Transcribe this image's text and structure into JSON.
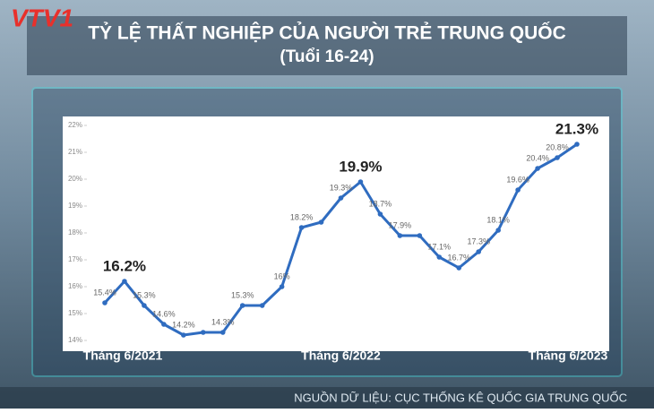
{
  "logo": "VTV1",
  "chart_data": {
    "type": "line",
    "title": "TỶ LỆ THẤT NGHIỆP CỦA NGƯỜI TRẺ TRUNG QUỐC",
    "subtitle": "(Tuổi 16-24)",
    "source": "NGUỒN DỮ LIỆU: CỤC THỐNG KÊ QUỐC GIA TRUNG QUỐC",
    "categories": [
      "Tháng 6/2021",
      null,
      null,
      null,
      null,
      null,
      null,
      null,
      null,
      null,
      null,
      null,
      "Tháng 6/2022",
      null,
      null,
      null,
      null,
      null,
      null,
      null,
      null,
      null,
      null,
      null,
      "Tháng 6/2023"
    ],
    "series": [
      {
        "name": "Tỷ lệ thất nghiệp",
        "color": "#2f6cc0",
        "values": [
          15.4,
          16.2,
          15.3,
          14.6,
          14.2,
          14.3,
          14.3,
          15.3,
          15.3,
          16.0,
          18.2,
          18.4,
          19.3,
          19.9,
          18.7,
          17.9,
          17.9,
          17.1,
          16.7,
          17.3,
          18.1,
          19.6,
          20.4,
          20.8,
          21.3
        ],
        "value_labels": [
          "15.4%",
          "16.2%",
          "15.3%",
          "14.6%",
          "14.2%",
          null,
          "14.3%",
          "15.3%",
          null,
          "16%",
          "18.2%",
          null,
          "19.3%",
          "19.9%",
          "18.7%",
          "17.9%",
          null,
          "17.1%",
          "16.7%",
          "17.3%",
          "18.1%",
          "19.6%",
          "20.4%",
          "20.8%",
          "21.3%"
        ],
        "emphasized": [
          1,
          13,
          24
        ]
      }
    ],
    "ylim": [
      14,
      22
    ],
    "yticks": [
      {
        "value": 14,
        "label": "14%"
      },
      {
        "value": 15,
        "label": "15%"
      },
      {
        "value": 16,
        "label": "16%"
      },
      {
        "value": 17,
        "label": "17%"
      },
      {
        "value": 18,
        "label": "18%"
      },
      {
        "value": 19,
        "label": "19%"
      },
      {
        "value": 20,
        "label": "20%"
      },
      {
        "value": 21,
        "label": "21%"
      },
      {
        "value": 22,
        "label": "22%"
      }
    ],
    "grid": false
  }
}
